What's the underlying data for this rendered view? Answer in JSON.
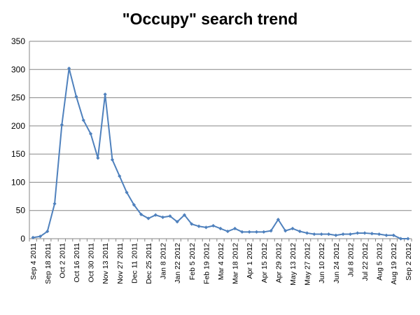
{
  "chart_data": {
    "type": "line",
    "title": "\"Occupy\" search trend",
    "xlabel": "",
    "ylabel": "",
    "ylim": [
      0,
      350
    ],
    "yticks": [
      0,
      50,
      100,
      150,
      200,
      250,
      300,
      350
    ],
    "grid": true,
    "legend": "none",
    "series_color": "#4f81bd",
    "x": [
      "Sep 4 2011",
      "Sep 11 2011",
      "Sep 18 2011",
      "Sep 25 2011",
      "Oct 2 2011",
      "Oct 9 2011",
      "Oct 16 2011",
      "Oct 23 2011",
      "Oct 30 2011",
      "Nov 6 2011",
      "Nov 13 2011",
      "Nov 20 2011",
      "Nov 27 2011",
      "Dec 4 2011",
      "Dec 11 2011",
      "Dec 18 2011",
      "Dec 25 2011",
      "Jan 1 2012",
      "Jan 8 2012",
      "Jan 15 2012",
      "Jan 22 2012",
      "Jan 29 2012",
      "Feb 5 2012",
      "Feb 12 2012",
      "Feb 19 2012",
      "Feb 26 2012",
      "Mar 4 2012",
      "Mar 11 2012",
      "Mar 18 2012",
      "Mar 25 2012",
      "Apr 1 2012",
      "Apr 8 2012",
      "Apr 15 2012",
      "Apr 22 2012",
      "Apr 29 2012",
      "May 6 2012",
      "May 13 2012",
      "May 20 2012",
      "May 27 2012",
      "Jun 3 2012",
      "Jun 10 2012",
      "Jun 17 2012",
      "Jun 24 2012",
      "Jul 1 2012",
      "Jul 8 2012",
      "Jul 15 2012",
      "Jul 22 2012",
      "Jul 29 2012",
      "Aug 5 2012",
      "Aug 12 2012",
      "Aug 19 2012",
      "Aug 26 2012",
      "Sep 2 2012"
    ],
    "xtick_labels": [
      "Sep 4 2011",
      "Sep 18 2011",
      "Oct 2 2011",
      "Oct 16 2011",
      "Oct 30 2011",
      "Nov 13 2011",
      "Nov 27 2011",
      "Dec 11 2011",
      "Dec 25 2011",
      "Jan 8 2012",
      "Jan 22 2012",
      "Feb 5 2012",
      "Feb 19 2012",
      "Mar 4 2012",
      "Mar 18 2012",
      "Apr 1 2012",
      "Apr 15 2012",
      "Apr 29 2012",
      "May 13 2012",
      "May 27 2012",
      "Jun 10 2012",
      "Jun 24 2012",
      "Jul 8 2012",
      "Jul 22 2012",
      "Aug 5 2012",
      "Aug 19 2012",
      "Sep 2 2012"
    ],
    "series": [
      {
        "values": [
          2,
          4,
          13,
          62,
          202,
          302,
          252,
          210,
          186,
          143,
          256,
          140,
          111,
          82,
          60,
          43,
          36,
          42,
          38,
          40,
          30,
          42,
          26,
          22,
          20,
          23,
          18,
          13,
          18,
          12,
          12,
          12,
          12,
          14,
          34,
          14,
          18,
          13,
          10,
          8,
          8,
          8,
          6,
          8,
          8,
          10,
          10,
          9,
          8,
          6,
          6,
          0,
          0
        ]
      }
    ]
  }
}
